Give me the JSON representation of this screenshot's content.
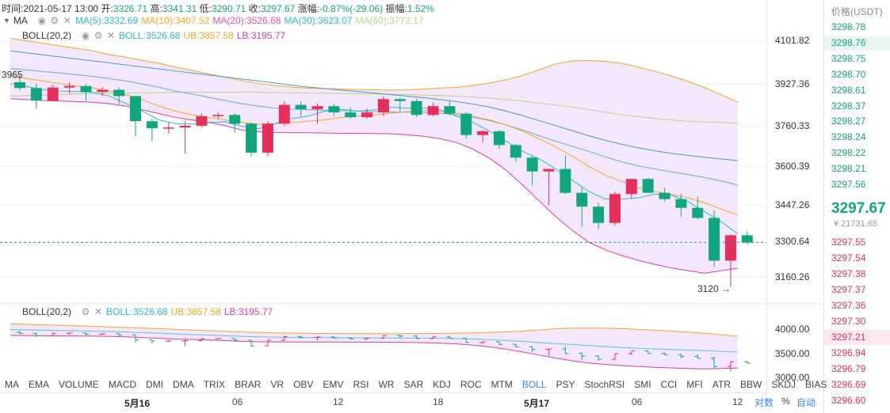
{
  "top_info": {
    "time_label": "时间:",
    "time": "2021-05-17 13:00",
    "open_label": "开:",
    "open": "3326.71",
    "high_label": "高:",
    "high": "3341.31",
    "low_label": "低:",
    "low": "3290.71",
    "close_label": "收:",
    "close": "3297.67",
    "change_label": "涨幅:",
    "change": "-0.87%(-29.06)",
    "amp_label": "振幅:",
    "amp": "1.52%"
  },
  "ma_row": {
    "name": "MA",
    "ma5": "MA(5):3332.69",
    "ma10": "MA(10):3407.52",
    "ma20": "MA(20):3526.68",
    "ma30": "MA(30):3623.07",
    "ma60": "MA(60):3772.17"
  },
  "boll_row": {
    "name": "BOLL(20,2)",
    "boll": "BOLL:3526.68",
    "ub": "UB:3857.58",
    "lb": "LB:3195.77"
  },
  "sub_boll_row": {
    "name": "BOLL(20,2)",
    "boll": "BOLL:3526.68",
    "ub": "UB:3857.58",
    "lb": "LB:3195.77"
  },
  "colors": {
    "up": "#e5305b",
    "down": "#12a67e",
    "ma5": "#2dbad0",
    "ma10": "#f5a623",
    "ma20": "#e94fa6",
    "ma30": "#2dbad0",
    "ma60": "#b8d48a",
    "boll_mid": "#5cc4d6",
    "boll_ub": "#f5a623",
    "boll_lb": "#d63fa8",
    "boll_fill": "#f4e6fb"
  },
  "price_axis": [
    "4101.82",
    "3927.36",
    "3760.33",
    "3600.39",
    "3447.26",
    "3300.64",
    "3160.26"
  ],
  "sub_axis": [
    "4000.00",
    "3500.00",
    "3000.00"
  ],
  "high_marker": "3965",
  "low_marker": "3120 →",
  "orderbook": {
    "header": "价格(USDT)",
    "asks": [
      "3298.78",
      "3298.76",
      "3298.75",
      "3298.70",
      "3298.61",
      "3298.37",
      "3298.27",
      "3298.24",
      "3298.22",
      "3298.21",
      "3297.56"
    ],
    "last": "3297.67",
    "cny": "¥ 21731.65",
    "bids": [
      "3297.55",
      "3297.54",
      "3297.38",
      "3297.37",
      "3297.36",
      "3297.30",
      "3297.21",
      "3296.94",
      "3296.79",
      "3296.69",
      "3296.60"
    ]
  },
  "indicator_tabs": [
    "MA",
    "EMA",
    "VOLUME",
    "MACD",
    "DMI",
    "DMA",
    "TRIX",
    "BRAR",
    "VR",
    "OBV",
    "EMV",
    "RSI",
    "WR",
    "SAR",
    "KDJ",
    "ROC",
    "MTM",
    "BOLL",
    "PSY",
    "StochRSI",
    "SMI",
    "CCI",
    "MFI",
    "ATR",
    "BBW",
    "SKDJ",
    "BIAS"
  ],
  "active_tab": "BOLL",
  "time_axis": [
    {
      "label": "5月16",
      "bold": true
    },
    {
      "label": "06",
      "bold": false
    },
    {
      "label": "12",
      "bold": false
    },
    {
      "label": "18",
      "bold": false
    },
    {
      "label": "5月17",
      "bold": true
    },
    {
      "label": "06",
      "bold": false
    },
    {
      "label": "12",
      "bold": false
    }
  ],
  "scale_buttons": {
    "log": "对数",
    "percent": "%",
    "auto": "自动"
  },
  "chart_data": {
    "type": "candlestick",
    "current_price": 3297.67,
    "candles": [
      {
        "o": 3935,
        "h": 3965,
        "l": 3900,
        "c": 3912
      },
      {
        "o": 3912,
        "h": 3930,
        "l": 3830,
        "c": 3862
      },
      {
        "o": 3862,
        "h": 3925,
        "l": 3860,
        "c": 3914
      },
      {
        "o": 3914,
        "h": 3935,
        "l": 3890,
        "c": 3920
      },
      {
        "o": 3920,
        "h": 3928,
        "l": 3860,
        "c": 3896
      },
      {
        "o": 3896,
        "h": 3915,
        "l": 3880,
        "c": 3905
      },
      {
        "o": 3905,
        "h": 3915,
        "l": 3850,
        "c": 3880
      },
      {
        "o": 3880,
        "h": 3882,
        "l": 3720,
        "c": 3780
      },
      {
        "o": 3780,
        "h": 3790,
        "l": 3700,
        "c": 3752
      },
      {
        "o": 3752,
        "h": 3775,
        "l": 3730,
        "c": 3755
      },
      {
        "o": 3755,
        "h": 3780,
        "l": 3650,
        "c": 3762
      },
      {
        "o": 3762,
        "h": 3812,
        "l": 3755,
        "c": 3800
      },
      {
        "o": 3800,
        "h": 3815,
        "l": 3790,
        "c": 3805
      },
      {
        "o": 3805,
        "h": 3812,
        "l": 3735,
        "c": 3770
      },
      {
        "o": 3770,
        "h": 3775,
        "l": 3640,
        "c": 3655
      },
      {
        "o": 3655,
        "h": 3780,
        "l": 3640,
        "c": 3770
      },
      {
        "o": 3770,
        "h": 3860,
        "l": 3760,
        "c": 3845
      },
      {
        "o": 3845,
        "h": 3860,
        "l": 3800,
        "c": 3828
      },
      {
        "o": 3828,
        "h": 3850,
        "l": 3770,
        "c": 3840
      },
      {
        "o": 3840,
        "h": 3850,
        "l": 3800,
        "c": 3815
      },
      {
        "o": 3815,
        "h": 3835,
        "l": 3790,
        "c": 3796
      },
      {
        "o": 3796,
        "h": 3830,
        "l": 3790,
        "c": 3815
      },
      {
        "o": 3815,
        "h": 3880,
        "l": 3800,
        "c": 3868
      },
      {
        "o": 3868,
        "h": 3874,
        "l": 3820,
        "c": 3860
      },
      {
        "o": 3860,
        "h": 3870,
        "l": 3796,
        "c": 3805
      },
      {
        "o": 3805,
        "h": 3855,
        "l": 3800,
        "c": 3840
      },
      {
        "o": 3840,
        "h": 3858,
        "l": 3805,
        "c": 3810
      },
      {
        "o": 3810,
        "h": 3815,
        "l": 3710,
        "c": 3725
      },
      {
        "o": 3725,
        "h": 3745,
        "l": 3695,
        "c": 3740
      },
      {
        "o": 3740,
        "h": 3745,
        "l": 3670,
        "c": 3685
      },
      {
        "o": 3685,
        "h": 3690,
        "l": 3620,
        "c": 3635
      },
      {
        "o": 3635,
        "h": 3640,
        "l": 3525,
        "c": 3580
      },
      {
        "o": 3580,
        "h": 3590,
        "l": 3445,
        "c": 3590
      },
      {
        "o": 3590,
        "h": 3645,
        "l": 3490,
        "c": 3495
      },
      {
        "o": 3495,
        "h": 3520,
        "l": 3360,
        "c": 3440
      },
      {
        "o": 3440,
        "h": 3455,
        "l": 3350,
        "c": 3375
      },
      {
        "o": 3375,
        "h": 3500,
        "l": 3365,
        "c": 3490
      },
      {
        "o": 3490,
        "h": 3545,
        "l": 3470,
        "c": 3550
      },
      {
        "o": 3550,
        "h": 3555,
        "l": 3500,
        "c": 3495
      },
      {
        "o": 3495,
        "h": 3515,
        "l": 3460,
        "c": 3470
      },
      {
        "o": 3470,
        "h": 3490,
        "l": 3400,
        "c": 3435
      },
      {
        "o": 3435,
        "h": 3480,
        "l": 3390,
        "c": 3395
      },
      {
        "o": 3395,
        "h": 3425,
        "l": 3200,
        "c": 3225
      },
      {
        "o": 3225,
        "h": 3330,
        "l": 3120,
        "c": 3326
      },
      {
        "o": 3326,
        "h": 3341,
        "l": 3290,
        "c": 3297
      }
    ],
    "ma5": [
      3930,
      3918,
      3905,
      3900,
      3898,
      3895,
      3880,
      3850,
      3820,
      3785,
      3770,
      3768,
      3775,
      3778,
      3760,
      3750,
      3770,
      3790,
      3800,
      3820,
      3828,
      3820,
      3825,
      3835,
      3832,
      3832,
      3825,
      3800,
      3775,
      3740,
      3700,
      3660,
      3630,
      3590,
      3545,
      3500,
      3470,
      3470,
      3475,
      3490,
      3485,
      3460,
      3420,
      3380,
      3332
    ],
    "ma10": [
      3960,
      3950,
      3940,
      3930,
      3920,
      3912,
      3900,
      3885,
      3865,
      3840,
      3820,
      3805,
      3795,
      3785,
      3775,
      3768,
      3770,
      3775,
      3780,
      3785,
      3795,
      3800,
      3805,
      3812,
      3818,
      3822,
      3820,
      3812,
      3800,
      3785,
      3765,
      3740,
      3710,
      3678,
      3640,
      3600,
      3565,
      3540,
      3515,
      3500,
      3488,
      3475,
      3455,
      3430,
      3407
    ],
    "ma20": [
      3990,
      3984,
      3978,
      3972,
      3965,
      3958,
      3950,
      3940,
      3928,
      3915,
      3900,
      3888,
      3875,
      3862,
      3850,
      3840,
      3832,
      3828,
      3826,
      3824,
      3822,
      3820,
      3818,
      3817,
      3816,
      3815,
      3812,
      3805,
      3795,
      3782,
      3765,
      3745,
      3722,
      3700,
      3680,
      3660,
      3638,
      3618,
      3602,
      3590,
      3578,
      3568,
      3556,
      3542,
      3526
    ],
    "ma30": [
      4060,
      4052,
      4044,
      4036,
      4028,
      4020,
      4012,
      4004,
      3996,
      3988,
      3980,
      3972,
      3964,
      3956,
      3948,
      3940,
      3932,
      3924,
      3916,
      3910,
      3904,
      3898,
      3892,
      3886,
      3880,
      3874,
      3866,
      3858,
      3848,
      3836,
      3820,
      3802,
      3782,
      3762,
      3742,
      3722,
      3704,
      3688,
      3674,
      3662,
      3652,
      3644,
      3636,
      3630,
      3623
    ],
    "ma60": [
      3880,
      3882,
      3884,
      3886,
      3888,
      3890,
      3891,
      3892,
      3893,
      3894,
      3895,
      3895,
      3895,
      3895,
      3895,
      3895,
      3894,
      3893,
      3892,
      3891,
      3890,
      3889,
      3888,
      3887,
      3886,
      3884,
      3882,
      3880,
      3876,
      3872,
      3866,
      3860,
      3852,
      3844,
      3836,
      3826,
      3816,
      3806,
      3798,
      3791,
      3785,
      3780,
      3777,
      3775,
      3772
    ],
    "boll_ub": [
      4110,
      4100,
      4090,
      4080,
      4070,
      4060,
      4045,
      4035,
      4022,
      4010,
      3995,
      3982,
      3968,
      3955,
      3942,
      3930,
      3922,
      3916,
      3912,
      3910,
      3908,
      3906,
      3905,
      3904,
      3905,
      3908,
      3912,
      3915,
      3922,
      3932,
      3945,
      3962,
      3985,
      4008,
      4020,
      4022,
      4018,
      4010,
      3995,
      3978,
      3960,
      3938,
      3914,
      3885,
      3857
    ],
    "boll_lb": [
      3870,
      3866,
      3862,
      3860,
      3858,
      3855,
      3850,
      3840,
      3825,
      3810,
      3795,
      3785,
      3775,
      3762,
      3745,
      3738,
      3735,
      3734,
      3734,
      3733,
      3732,
      3732,
      3731,
      3730,
      3726,
      3720,
      3710,
      3695,
      3668,
      3632,
      3585,
      3525,
      3462,
      3400,
      3345,
      3298,
      3268,
      3245,
      3226,
      3210,
      3196,
      3185,
      3175,
      3185,
      3195
    ]
  }
}
